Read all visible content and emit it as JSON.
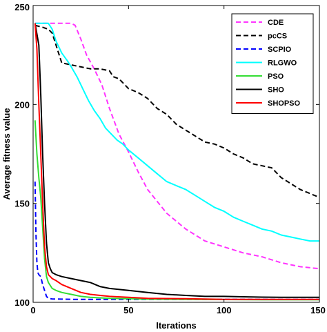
{
  "chart_data": {
    "type": "line",
    "title": "",
    "xlabel": "Iterations",
    "ylabel": "Average fitness value",
    "xlim": [
      0,
      150
    ],
    "ylim": [
      100,
      250
    ],
    "xticks": [
      0,
      50,
      100,
      150
    ],
    "yticks": [
      100,
      150,
      200,
      250
    ],
    "grid": false,
    "legend_position": "top-right",
    "series": [
      {
        "name": "CDE",
        "color": "#ff33ff",
        "dash": "dashed",
        "x": [
          1,
          5,
          10,
          15,
          20,
          22,
          25,
          28,
          32,
          36,
          40,
          45,
          50,
          55,
          60,
          70,
          80,
          90,
          100,
          110,
          120,
          130,
          140,
          150
        ],
        "y": [
          241,
          241,
          241,
          241,
          241,
          240,
          233,
          225,
          218,
          210,
          198,
          185,
          176,
          166,
          157,
          145,
          137,
          131,
          128,
          125,
          123,
          120,
          118,
          117
        ]
      },
      {
        "name": "pcCS",
        "color": "#000000",
        "dash": "dashed",
        "x": [
          1,
          5,
          8,
          10,
          12,
          14,
          15,
          20,
          25,
          30,
          35,
          40,
          42,
          45,
          50,
          55,
          60,
          65,
          70,
          75,
          80,
          85,
          90,
          95,
          100,
          105,
          110,
          115,
          120,
          125,
          130,
          135,
          140,
          145,
          150
        ],
        "y": [
          240,
          239,
          238,
          236,
          230,
          224,
          221,
          220,
          219,
          218,
          218,
          217,
          214,
          213,
          208,
          206,
          203,
          198,
          195,
          190,
          187,
          184,
          181,
          180,
          178,
          175,
          173,
          170,
          169,
          168,
          163,
          160,
          157,
          155,
          153
        ]
      },
      {
        "name": "SCPIO",
        "color": "#0000ff",
        "dash": "dashed",
        "x": [
          1,
          1.5,
          2,
          2.5,
          3,
          4,
          5,
          6,
          7,
          8,
          10,
          15,
          20,
          50,
          100,
          150
        ],
        "y": [
          161,
          135,
          120,
          115,
          114,
          113,
          109,
          106,
          103,
          102,
          101.7,
          101.6,
          101.5,
          101.5,
          101.5,
          101.5
        ]
      },
      {
        "name": "RLGWO",
        "color": "#00ffff",
        "dash": "solid",
        "x": [
          1,
          5,
          8,
          10,
          12,
          15,
          18,
          20,
          23,
          26,
          29,
          32,
          35,
          38,
          41,
          44,
          47,
          50,
          55,
          60,
          65,
          70,
          75,
          80,
          85,
          90,
          95,
          100,
          105,
          110,
          115,
          120,
          125,
          130,
          135,
          140,
          145,
          150
        ],
        "y": [
          241,
          241,
          241,
          238,
          232,
          226,
          222,
          219,
          214,
          208,
          202,
          197,
          193,
          188,
          185,
          182,
          180,
          177,
          173,
          169,
          165,
          161,
          159,
          157,
          154,
          151,
          148,
          146,
          143,
          141,
          139,
          137,
          136,
          134,
          133,
          132,
          131,
          131
        ]
      },
      {
        "name": "PSO",
        "color": "#33dd33",
        "dash": "solid",
        "x": [
          1,
          2,
          3,
          4,
          5,
          6,
          7,
          8,
          10,
          12,
          15,
          20,
          25,
          30,
          40,
          50,
          60,
          80,
          100,
          120,
          150
        ],
        "y": [
          192,
          175,
          163,
          153,
          138,
          122,
          113,
          110,
          107,
          106,
          105,
          104,
          103,
          102.5,
          102,
          101.8,
          101.6,
          101.5,
          101.4,
          101.3,
          101.3
        ]
      },
      {
        "name": "SHO",
        "color": "#000000",
        "dash": "solid",
        "x": [
          1,
          3,
          4,
          5,
          6,
          7,
          8,
          9,
          10,
          12,
          15,
          20,
          25,
          30,
          35,
          40,
          50,
          60,
          70,
          80,
          90,
          100,
          110,
          120,
          130,
          140,
          150
        ],
        "y": [
          241,
          230,
          205,
          175,
          150,
          130,
          120,
          117,
          115,
          114,
          113,
          112,
          111,
          110,
          108,
          107,
          106,
          105,
          104,
          103.5,
          103,
          103,
          102.8,
          102.6,
          102.5,
          102.5,
          102.5
        ]
      },
      {
        "name": "SHOPSO",
        "color": "#ff0000",
        "dash": "solid",
        "x": [
          1,
          2,
          3,
          4,
          5,
          6,
          7,
          8,
          9,
          10,
          12,
          15,
          20,
          25,
          30,
          40,
          50,
          60,
          80,
          100,
          120,
          150
        ],
        "y": [
          241,
          228,
          200,
          175,
          150,
          128,
          118,
          114,
          113,
          112,
          111,
          109,
          107,
          105,
          104,
          103,
          102.5,
          102,
          101.8,
          101.5,
          101.5,
          101.5
        ]
      }
    ]
  }
}
